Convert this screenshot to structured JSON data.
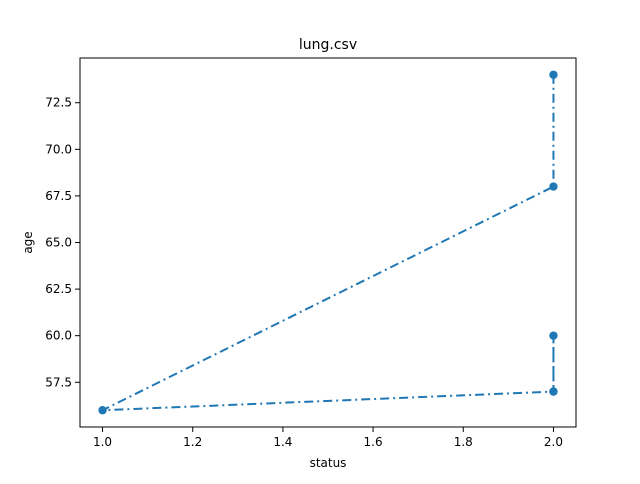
{
  "chart_data": {
    "type": "line",
    "title": "lung.csv",
    "xlabel": "status",
    "ylabel": "age",
    "x": [
      2.0,
      2.0,
      1.0,
      2.0,
      2.0,
      2.0
    ],
    "series": [
      {
        "values": [
          74.0,
          68.0,
          56.0,
          57.0,
          60.0,
          57.0
        ],
        "color": "#1f77b4",
        "line_style": "dash-dot",
        "marker": "circle"
      }
    ],
    "xlim": [
      0.95,
      2.05
    ],
    "ylim": [
      55.1,
      74.9
    ],
    "xticks": [
      1.0,
      1.2,
      1.4,
      1.6,
      1.8,
      2.0
    ],
    "xtick_labels": [
      "1.0",
      "1.2",
      "1.4",
      "1.6",
      "1.8",
      "2.0"
    ],
    "yticks": [
      57.5,
      60.0,
      62.5,
      65.0,
      67.5,
      70.0,
      72.5
    ],
    "ytick_labels": [
      "57.5",
      "60.0",
      "62.5",
      "65.0",
      "67.5",
      "70.0",
      "72.5"
    ],
    "grid": false,
    "legend": "none"
  }
}
